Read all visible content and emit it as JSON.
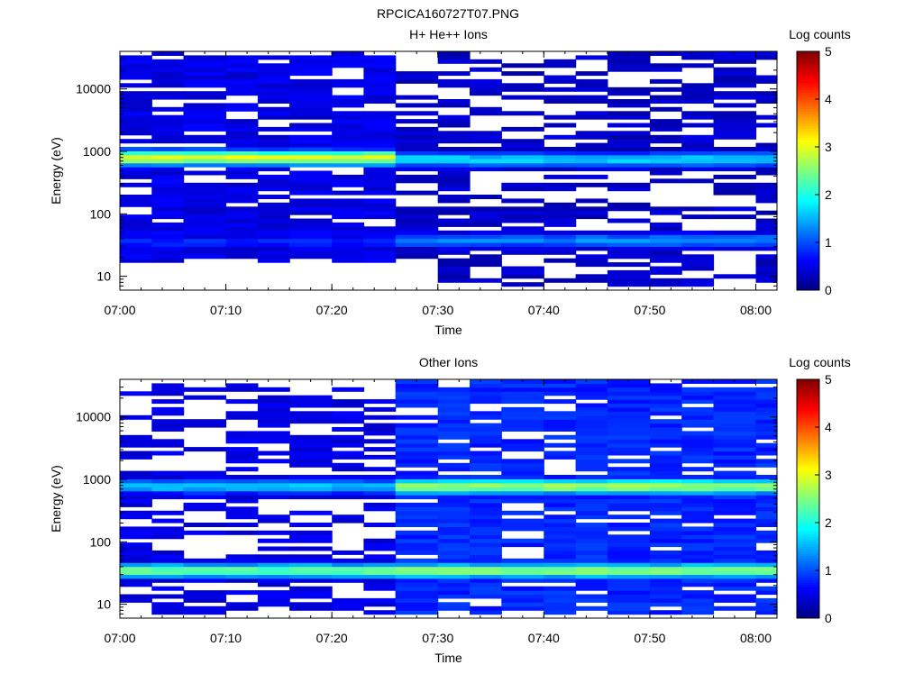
{
  "figure": {
    "title": "RPCICA160727T07.PNG"
  },
  "colorscale": {
    "stops": [
      "#00007f",
      "#0000ff",
      "#007fff",
      "#00ffff",
      "#7fff7f",
      "#ffff00",
      "#ff7f00",
      "#ff0000",
      "#7f0000"
    ]
  },
  "chart_data": [
    {
      "type": "heatmap",
      "title": "H+ He++ Ions",
      "xlabel": "Time",
      "ylabel": "Energy (eV)",
      "colorbar_label": "Log counts",
      "yscale": "log",
      "x_range": [
        "07:00",
        "08:02"
      ],
      "ylim": [
        6,
        40000
      ],
      "xtick_labels": [
        "07:00",
        "07:10",
        "07:20",
        "07:30",
        "07:40",
        "07:50",
        "08:00"
      ],
      "ytick_labels": [
        "10",
        "100",
        "1000",
        "10000"
      ],
      "colorbar_range": [
        0,
        5
      ],
      "colorbar_ticks": [
        "0",
        "1",
        "2",
        "3",
        "4",
        "5"
      ],
      "time_bins": [
        "07:00",
        "07:03",
        "07:06",
        "07:10",
        "07:13",
        "07:16",
        "07:20",
        "07:23",
        "07:26",
        "07:30",
        "07:33",
        "07:36",
        "07:40",
        "07:43",
        "07:46",
        "07:50",
        "07:53",
        "07:56",
        "08:00"
      ],
      "profiles": [
        {
          "from": "07:00",
          "to": "07:26",
          "peaks": [
            {
              "energy": 800,
              "log_counts": 3.0
            },
            {
              "energy": 35,
              "log_counts": 0.8
            }
          ],
          "background": 0.5,
          "top_energy": 40000,
          "bottom_energy": 18,
          "fill": 0.8
        },
        {
          "from": "07:26",
          "to": "08:02",
          "peaks": [
            {
              "energy": 750,
              "log_counts": 1.7
            },
            {
              "energy": 38,
              "log_counts": 1.3
            }
          ],
          "background": 0.35,
          "top_energy": 40000,
          "bottom_energy": 8,
          "fill": 0.5
        }
      ]
    },
    {
      "type": "heatmap",
      "title": "Other Ions",
      "xlabel": "Time",
      "ylabel": "Energy (eV)",
      "colorbar_label": "Log counts",
      "yscale": "log",
      "x_range": [
        "07:00",
        "08:02"
      ],
      "ylim": [
        6,
        40000
      ],
      "xtick_labels": [
        "07:00",
        "07:10",
        "07:20",
        "07:30",
        "07:40",
        "07:50",
        "08:00"
      ],
      "ytick_labels": [
        "10",
        "100",
        "1000",
        "10000"
      ],
      "colorbar_range": [
        0,
        5
      ],
      "colorbar_ticks": [
        "0",
        "1",
        "2",
        "3",
        "4",
        "5"
      ],
      "time_bins": [
        "07:00",
        "07:03",
        "07:06",
        "07:10",
        "07:13",
        "07:16",
        "07:20",
        "07:23",
        "07:26",
        "07:30",
        "07:33",
        "07:36",
        "07:40",
        "07:43",
        "07:46",
        "07:50",
        "07:53",
        "07:56",
        "08:00"
      ],
      "profiles": [
        {
          "from": "07:00",
          "to": "07:26",
          "peaks": [
            {
              "energy": 780,
              "log_counts": 1.6
            },
            {
              "energy": 35,
              "log_counts": 2.4
            }
          ],
          "background": 0.5,
          "top_energy": 30000,
          "bottom_energy": 8,
          "fill": 0.5
        },
        {
          "from": "07:26",
          "to": "08:02",
          "peaks": [
            {
              "energy": 780,
              "log_counts": 2.7
            },
            {
              "energy": 35,
              "log_counts": 2.6
            }
          ],
          "background": 0.8,
          "top_energy": 40000,
          "bottom_energy": 8,
          "fill": 0.85
        }
      ]
    }
  ]
}
